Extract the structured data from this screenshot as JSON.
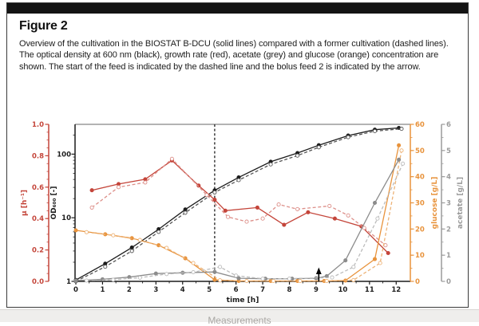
{
  "figure": {
    "label": "Figure 2",
    "caption": "Overview of the cultivation in the BIOSTAT B-DCU (solid lines) compared with a former cultivation (dashed lines). The optical density at 600 nm (black), growth rate (red), acetate (grey) and glucose (orange) concentration are shown. The start of the feed is indicated by the dashed line and the bolus feed 2 is indicated by the arrow."
  },
  "footer": {
    "partial_text": "Measurements"
  },
  "chart_data": {
    "type": "line",
    "grid": false,
    "legend": "none",
    "x_axis": {
      "label": "time [h]",
      "min": 0,
      "max": 12.5,
      "ticks": [
        0,
        1,
        2,
        3,
        4,
        5,
        6,
        7,
        8,
        9,
        10,
        11,
        12
      ],
      "tick_labels": [
        "0",
        "1",
        "2",
        "3",
        "4",
        "5",
        "6",
        "7",
        "8",
        "9",
        "10",
        "11",
        "12"
      ],
      "minor_step": 0.5,
      "color": "#1c1c1c"
    },
    "y_axes": {
      "mu": {
        "label": "µ [h⁻¹]",
        "scale": "linear",
        "min": 0,
        "max": 1,
        "ticks": [
          0,
          0.2,
          0.4,
          0.6,
          0.8,
          1.0
        ],
        "tick_labels": [
          "0.0",
          "0.2",
          "0.4",
          "0.6",
          "0.8",
          "1.0"
        ],
        "minor_step": 0.05,
        "color": "#c4453a",
        "position": "outer-left"
      },
      "od600": {
        "label": "OD₆₀₀ [-]",
        "scale": "log",
        "min": 1,
        "max": 294,
        "ticks": [
          1,
          10,
          100
        ],
        "tick_labels": [
          "1",
          "10",
          "100"
        ],
        "color": "#1c1c1c",
        "position": "left"
      },
      "glucose": {
        "label": "glucose [g/L]",
        "scale": "linear",
        "min": 0,
        "max": 60,
        "ticks": [
          0,
          10,
          20,
          30,
          40,
          50,
          60
        ],
        "tick_labels": [
          "0",
          "10",
          "20",
          "30",
          "40",
          "50",
          "60"
        ],
        "minor_step": 5,
        "color": "#e8933c",
        "position": "right"
      },
      "acetate": {
        "label": "acetate [g/L]",
        "scale": "linear",
        "min": 0,
        "max": 6,
        "ticks": [
          0,
          1,
          2,
          3,
          4,
          5,
          6
        ],
        "tick_labels": [
          "0",
          "1",
          "2",
          "3",
          "4",
          "5",
          "6"
        ],
        "minor_step": 0.5,
        "color": "#9b9b9b",
        "position": "outer-right"
      }
    },
    "annotations": {
      "feed_start_dashed_line_t": 5.2,
      "bolus_feed2_arrow_t": 9.1,
      "top_spine_color": "#9a9a9a"
    },
    "series": [
      {
        "id": "od600-biostat",
        "label": "OD600 BIOSTAT B-DCU (solid)",
        "axis": "od600",
        "line": "solid",
        "marker": "filled",
        "color": "#1c1c1c",
        "points": [
          [
            0,
            1.05
          ],
          [
            1.1,
            1.9
          ],
          [
            2.1,
            3.4
          ],
          [
            3.1,
            6.6
          ],
          [
            4.1,
            13.5
          ],
          [
            5.2,
            27
          ],
          [
            6.1,
            43
          ],
          [
            7.3,
            76
          ],
          [
            8.3,
            104
          ],
          [
            9.1,
            138
          ],
          [
            10.2,
            196
          ],
          [
            11.2,
            242
          ],
          [
            12.1,
            258
          ]
        ]
      },
      {
        "id": "od600-former",
        "label": "OD600 former cultivation (dashed)",
        "axis": "od600",
        "line": "dashed",
        "marker": "open",
        "color": "#555555",
        "points": [
          [
            0,
            1.0
          ],
          [
            1.1,
            1.7
          ],
          [
            2.1,
            3.0
          ],
          [
            3.1,
            6.0
          ],
          [
            4.1,
            12
          ],
          [
            5.2,
            25
          ],
          [
            6.1,
            39
          ],
          [
            7.3,
            69
          ],
          [
            8.3,
            95
          ],
          [
            9.1,
            128
          ],
          [
            10.2,
            185
          ],
          [
            11.2,
            230
          ],
          [
            12.2,
            250
          ]
        ]
      },
      {
        "id": "mu-biostat",
        "label": "growth rate BIOSTAT B-DCU (solid)",
        "axis": "mu",
        "line": "solid",
        "marker": "filled",
        "color": "#c4453a",
        "points": [
          [
            0.6,
            0.58
          ],
          [
            1.6,
            0.62
          ],
          [
            2.6,
            0.65
          ],
          [
            3.6,
            0.77
          ],
          [
            4.6,
            0.61
          ],
          [
            5.2,
            0.52
          ],
          [
            5.6,
            0.45
          ],
          [
            6.8,
            0.47
          ],
          [
            7.8,
            0.36
          ],
          [
            8.7,
            0.44
          ],
          [
            9.7,
            0.4
          ],
          [
            10.7,
            0.35
          ],
          [
            11.7,
            0.18
          ]
        ]
      },
      {
        "id": "mu-former",
        "label": "growth rate former cultivation (dashed)",
        "axis": "mu",
        "line": "dashed",
        "marker": "open",
        "color": "#dd8f89",
        "points": [
          [
            0.6,
            0.47
          ],
          [
            1.6,
            0.6
          ],
          [
            2.6,
            0.63
          ],
          [
            3.6,
            0.78
          ],
          [
            4.9,
            0.55
          ],
          [
            5.7,
            0.41
          ],
          [
            6.4,
            0.38
          ],
          [
            7.0,
            0.4
          ],
          [
            7.6,
            0.49
          ],
          [
            8.3,
            0.46
          ],
          [
            9.5,
            0.48
          ],
          [
            10.2,
            0.42
          ],
          [
            10.8,
            0.34
          ],
          [
            11.6,
            0.23
          ]
        ]
      },
      {
        "id": "glucose-biostat",
        "label": "glucose BIOSTAT B-DCU (solid)",
        "axis": "glucose",
        "line": "solid",
        "marker": "filled",
        "color": "#e8933c",
        "points": [
          [
            0,
            19.5
          ],
          [
            1.1,
            18.0
          ],
          [
            2.1,
            16.5
          ],
          [
            3.1,
            13.8
          ],
          [
            4.1,
            8.8
          ],
          [
            5.2,
            0.6
          ],
          [
            6.1,
            0.15
          ],
          [
            7.3,
            0.15
          ],
          [
            8.3,
            0.15
          ],
          [
            9.3,
            0.15
          ],
          [
            10.1,
            0.3
          ],
          [
            11.2,
            8.5
          ],
          [
            12.1,
            52
          ]
        ]
      },
      {
        "id": "glucose-former",
        "label": "glucose former cultivation (dashed)",
        "axis": "glucose",
        "line": "dashed",
        "marker": "open",
        "color": "#edb377",
        "points": [
          [
            0.4,
            18.8
          ],
          [
            1.4,
            17.6
          ],
          [
            2.4,
            15.8
          ],
          [
            3.4,
            12.8
          ],
          [
            4.4,
            7.0
          ],
          [
            5.4,
            0.4
          ],
          [
            6.4,
            0.15
          ],
          [
            7.4,
            0.15
          ],
          [
            8.4,
            0.15
          ],
          [
            9.4,
            0.15
          ],
          [
            10.4,
            0.5
          ],
          [
            11.4,
            7.0
          ],
          [
            12.2,
            50
          ]
        ]
      },
      {
        "id": "acetate-biostat",
        "label": "acetate BIOSTAT B-DCU (solid)",
        "axis": "acetate",
        "line": "solid",
        "marker": "filled",
        "color": "#8c8c8c",
        "points": [
          [
            0,
            0.03
          ],
          [
            1,
            0.08
          ],
          [
            2,
            0.16
          ],
          [
            3,
            0.3
          ],
          [
            4,
            0.33
          ],
          [
            5.2,
            0.36
          ],
          [
            6.1,
            0.12
          ],
          [
            7.1,
            0.1
          ],
          [
            8.1,
            0.1
          ],
          [
            9.0,
            0.12
          ],
          [
            9.4,
            0.2
          ],
          [
            10.1,
            0.8
          ],
          [
            11.2,
            3.0
          ],
          [
            12.1,
            4.65
          ]
        ]
      },
      {
        "id": "acetate-former",
        "label": "acetate former cultivation (dashed)",
        "axis": "acetate",
        "line": "dashed",
        "marker": "open",
        "color": "#bcbcbc",
        "points": [
          [
            0.4,
            0.03
          ],
          [
            1.4,
            0.06
          ],
          [
            2.4,
            0.14
          ],
          [
            3.4,
            0.28
          ],
          [
            4.4,
            0.35
          ],
          [
            5.4,
            0.55
          ],
          [
            6.0,
            0.22
          ],
          [
            7.0,
            0.1
          ],
          [
            8.0,
            0.1
          ],
          [
            9.6,
            0.15
          ],
          [
            10.4,
            0.55
          ],
          [
            11.3,
            2.4
          ],
          [
            12.25,
            4.5
          ]
        ]
      }
    ]
  }
}
